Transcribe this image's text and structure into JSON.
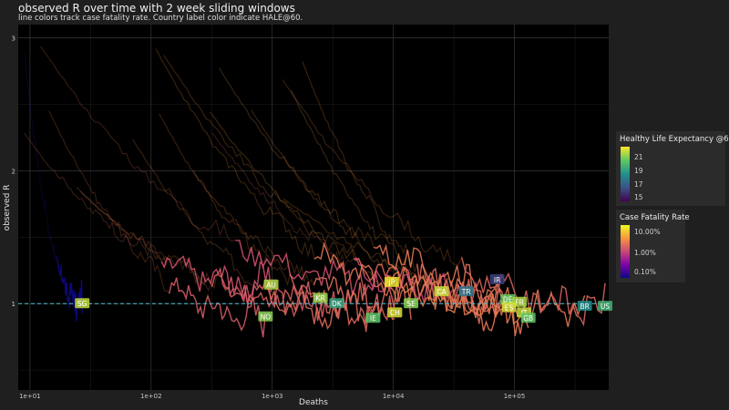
{
  "chart_data": {
    "type": "line",
    "title": "observed R over time with 2 week sliding windows",
    "subtitle": "line colors track case fatality rate. Country label color indicate HALE@60.",
    "xlabel": "Deaths",
    "ylabel": "observed R",
    "x_scale": "log10",
    "xlim": [
      8,
      600000
    ],
    "ylim": [
      0.35,
      3.1
    ],
    "x_ticks": [
      {
        "value": 10,
        "label": "1e+01"
      },
      {
        "value": 100,
        "label": "1e+02"
      },
      {
        "value": 1000,
        "label": "1e+03"
      },
      {
        "value": 10000,
        "label": "1e+04"
      },
      {
        "value": 100000,
        "label": "1e+05"
      }
    ],
    "y_ticks": [
      {
        "value": 1,
        "label": "1"
      },
      {
        "value": 2,
        "label": "2"
      },
      {
        "value": 3,
        "label": "3"
      }
    ],
    "reference_line": {
      "y": 1,
      "style": "dashed",
      "color": "#4fc3d9"
    },
    "grid": true,
    "countries": [
      {
        "label": "SG",
        "deaths": 27,
        "r": 1.0,
        "hale": 21.5,
        "cfr": 0.05
      },
      {
        "label": "AU",
        "deaths": 980,
        "r": 1.14,
        "hale": 21.3,
        "cfr": 1.2
      },
      {
        "label": "NO",
        "deaths": 880,
        "r": 0.9,
        "hale": 20.8,
        "cfr": 1.5
      },
      {
        "label": "KR",
        "deaths": 2500,
        "r": 1.04,
        "hale": 21.0,
        "cfr": 1.6
      },
      {
        "label": "DK",
        "deaths": 3400,
        "r": 1.0,
        "hale": 19.0,
        "cfr": 1.5
      },
      {
        "label": "IE",
        "deaths": 6800,
        "r": 0.89,
        "hale": 20.2,
        "cfr": 2.0
      },
      {
        "label": "JP",
        "deaths": 9700,
        "r": 1.16,
        "hale": 22.0,
        "cfr": 1.2
      },
      {
        "label": "CH",
        "deaths": 10300,
        "r": 0.93,
        "hale": 21.8,
        "cfr": 1.8
      },
      {
        "label": "SE",
        "deaths": 14000,
        "r": 1.0,
        "hale": 20.8,
        "cfr": 2.0
      },
      {
        "label": "CA",
        "deaths": 25000,
        "r": 1.09,
        "hale": 21.6,
        "cfr": 2.5
      },
      {
        "label": "TR",
        "deaths": 40000,
        "r": 1.09,
        "hale": 17.5,
        "cfr": 1.0
      },
      {
        "label": "IR",
        "deaths": 72000,
        "r": 1.18,
        "hale": 16.0,
        "cfr": 2.5
      },
      {
        "label": "DE",
        "deaths": 88000,
        "r": 1.03,
        "hale": 20.3,
        "cfr": 2.0
      },
      {
        "label": "FR",
        "deaths": 110000,
        "r": 1.01,
        "hale": 21.2,
        "cfr": 2.0
      },
      {
        "label": "ES",
        "deaths": 90000,
        "r": 0.97,
        "hale": 21.7,
        "cfr": 2.0
      },
      {
        "label": "IT",
        "deaths": 120000,
        "r": 0.93,
        "hale": 21.5,
        "cfr": 3.0
      },
      {
        "label": "GB",
        "deaths": 130000,
        "r": 0.89,
        "hale": 20.2,
        "cfr": 2.5
      },
      {
        "label": "BR",
        "deaths": 380000,
        "r": 0.98,
        "hale": 18.3,
        "cfr": 2.5
      },
      {
        "label": "US",
        "deaths": 560000,
        "r": 0.98,
        "hale": 19.5,
        "cfr": 1.8
      }
    ],
    "legends": [
      {
        "title": "Healthy Life Expectancy @60",
        "scale": "viridis",
        "range": [
          14.5,
          22.2
        ],
        "labels": [
          {
            "value": 21,
            "label": "21"
          },
          {
            "value": 19,
            "label": "19"
          },
          {
            "value": 17,
            "label": "17"
          },
          {
            "value": 15,
            "label": "15"
          }
        ]
      },
      {
        "title": "Case Fatality Rate",
        "scale": "plasma",
        "log": true,
        "range": [
          0.05,
          20
        ],
        "labels": [
          {
            "value": 10,
            "label": "10.00%"
          },
          {
            "value": 1,
            "label": "1.00%"
          },
          {
            "value": 0.1,
            "label": "0.10%"
          }
        ]
      }
    ]
  }
}
